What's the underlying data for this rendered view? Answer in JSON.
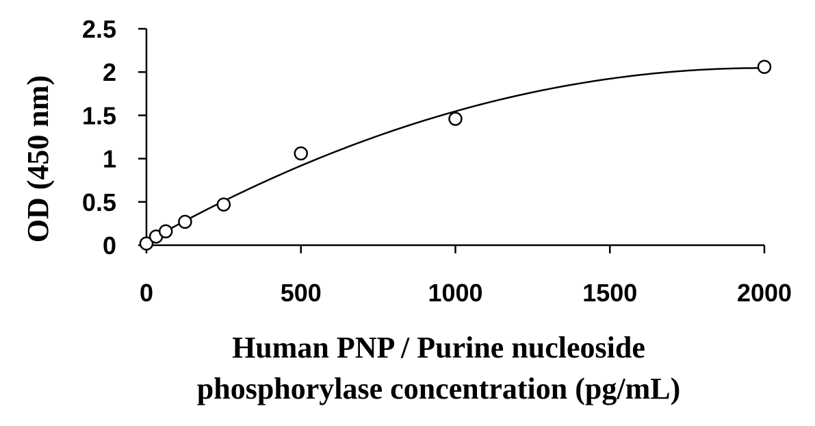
{
  "chart_data": {
    "type": "scatter",
    "title": "",
    "xlabel_lines": [
      "Human PNP / Purine nucleoside",
      "phosphorylase concentration (pg/mL)"
    ],
    "ylabel": "OD (450 nm)",
    "xlim": [
      0,
      2000
    ],
    "ylim": [
      0,
      2.5
    ],
    "x_ticks": [
      0,
      500,
      1000,
      1500,
      2000
    ],
    "y_ticks": [
      0,
      0.5,
      1,
      1.5,
      2,
      2.5
    ],
    "x_tick_labels": [
      "0",
      "500",
      "1000",
      "1500",
      "2000"
    ],
    "y_tick_labels": [
      "0",
      "0.5",
      "1",
      "1.5",
      "2",
      "2.5"
    ],
    "grid": false,
    "legend": "none",
    "series": [
      {
        "x": [
          0,
          31.25,
          62.5,
          125,
          250,
          500,
          1000,
          2000
        ],
        "y": [
          0.02,
          0.1,
          0.16,
          0.27,
          0.47,
          1.06,
          1.46,
          2.06
        ],
        "marker": "open-circle",
        "fit_curve": true
      }
    ],
    "colors": {
      "marks": "#000000"
    }
  }
}
